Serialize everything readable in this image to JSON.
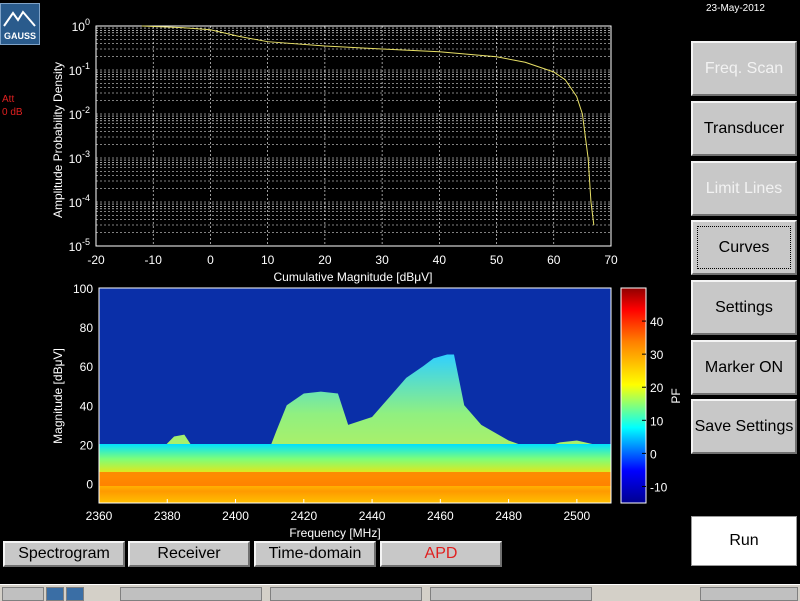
{
  "app": {
    "logo_text": "GAUSS",
    "date": "23-May-2012",
    "att_label": "Att",
    "att_value": "0 dB"
  },
  "side_buttons": [
    {
      "label": "Freq. Scan",
      "state": "disabled"
    },
    {
      "label": "Transducer",
      "state": "normal"
    },
    {
      "label": "Limit Lines",
      "state": "disabled"
    },
    {
      "label": "Curves",
      "state": "focused"
    },
    {
      "label": "Settings",
      "state": "normal"
    },
    {
      "label": "Marker ON",
      "state": "normal"
    },
    {
      "label": "Save Settings",
      "state": "normal"
    }
  ],
  "run_button": {
    "label": "Run"
  },
  "tabs": [
    {
      "label": "Spectrogram",
      "active": false
    },
    {
      "label": "Receiver",
      "active": false
    },
    {
      "label": "Time-domain",
      "active": false
    },
    {
      "label": "APD",
      "active": true
    }
  ],
  "colors": {
    "apd_curve": "#e8e066",
    "active_tab_text": "#e02020",
    "att_text": "#e02020"
  },
  "chart_data": [
    {
      "type": "line",
      "title": "",
      "xlabel": "Cumulative Magnitude [dBμV]",
      "ylabel": "Amplitude Probability Density",
      "xlim": [
        -20,
        70
      ],
      "ylim_exponent": [
        -5,
        0
      ],
      "y_scale": "log",
      "grid": "dashed",
      "x_ticks": [
        "-20",
        "-10",
        "0",
        "10",
        "20",
        "30",
        "40",
        "50",
        "60",
        "70"
      ],
      "y_ticks": [
        {
          "base": "10",
          "exp": "0"
        },
        {
          "base": "10",
          "exp": "-1"
        },
        {
          "base": "10",
          "exp": "-2"
        },
        {
          "base": "10",
          "exp": "-3"
        },
        {
          "base": "10",
          "exp": "-4"
        },
        {
          "base": "10",
          "exp": "-5"
        }
      ],
      "series": [
        {
          "x": [
            -12,
            -5,
            0,
            5,
            10,
            20,
            30,
            40,
            50,
            55,
            60,
            62,
            64,
            65,
            66,
            66.5,
            67
          ],
          "y": [
            1.0,
            0.92,
            0.82,
            0.58,
            0.44,
            0.35,
            0.3,
            0.26,
            0.2,
            0.15,
            0.09,
            0.06,
            0.025,
            0.01,
            0.001,
            0.0001,
            3e-05
          ]
        }
      ]
    },
    {
      "type": "heatmap",
      "title": "",
      "xlabel": "Frequency [MHz]",
      "ylabel": "Magnitude [dBμV]",
      "xlim": [
        2360,
        2510
      ],
      "ylim": [
        -10,
        100
      ],
      "x_ticks": [
        "2360",
        "2380",
        "2400",
        "2420",
        "2440",
        "2460",
        "2480",
        "2500"
      ],
      "y_ticks": [
        "100",
        "80",
        "60",
        "40",
        "20",
        "0"
      ],
      "colorbar": {
        "label": "PF",
        "range": [
          -15,
          50
        ],
        "ticks": [
          "40",
          "30",
          "20",
          "10",
          "0",
          "-10"
        ]
      },
      "envelope": {
        "freq_mhz": [
          2360,
          2378,
          2382,
          2385,
          2388,
          2395,
          2410,
          2412,
          2415,
          2420,
          2425,
          2430,
          2433,
          2440,
          2445,
          2450,
          2455,
          2458,
          2462,
          2464,
          2467,
          2472,
          2480,
          2488,
          2495,
          2500,
          2505,
          2510
        ],
        "magnitude_dbuv": [
          17,
          17,
          24,
          25,
          17,
          17,
          18,
          27,
          40,
          46,
          47,
          46,
          30,
          34,
          44,
          54,
          60,
          64,
          66,
          66,
          40,
          30,
          22,
          17,
          21,
          22,
          20,
          17
        ]
      }
    }
  ]
}
